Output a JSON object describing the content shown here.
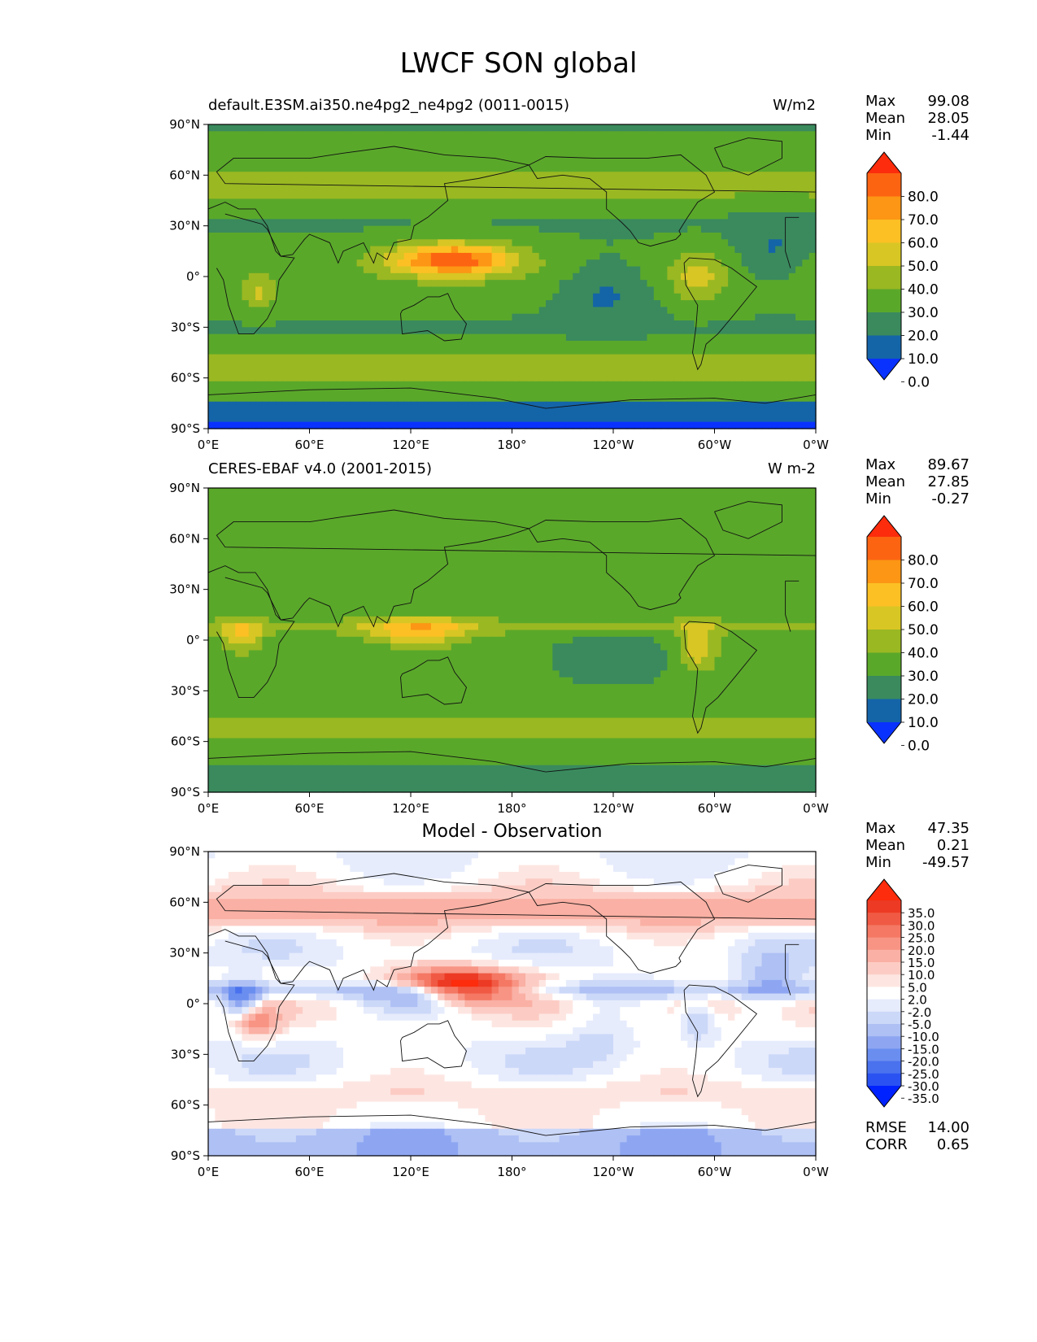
{
  "page_title": "LWCF SON global",
  "panels": [
    {
      "title_left": "default.E3SM.ai350.ne4pg2_ne4pg2 (0011-0015)",
      "title_right": "W/m2",
      "stats": [
        {
          "label": "Max",
          "value": "99.08"
        },
        {
          "label": "Mean",
          "value": "28.05"
        },
        {
          "label": "Min",
          "value": "-1.44"
        }
      ],
      "colorbar_levels": [
        "80.0",
        "70.0",
        "60.0",
        "50.0",
        "40.0",
        "30.0",
        "20.0",
        "10.0",
        "0.0"
      ]
    },
    {
      "title_left": "CERES-EBAF v4.0 (2001-2015)",
      "title_right": "W m-2",
      "stats": [
        {
          "label": "Max",
          "value": "89.67"
        },
        {
          "label": "Mean",
          "value": "27.85"
        },
        {
          "label": "Min",
          "value": "-0.27"
        }
      ],
      "colorbar_levels": [
        "80.0",
        "70.0",
        "60.0",
        "50.0",
        "40.0",
        "30.0",
        "20.0",
        "10.0",
        "0.0"
      ]
    },
    {
      "title_center": "Model - Observation",
      "stats": [
        {
          "label": "Max",
          "value": "47.35"
        },
        {
          "label": "Mean",
          "value": "0.21"
        },
        {
          "label": "Min",
          "value": "-49.57"
        }
      ],
      "colorbar_levels": [
        "35.0",
        "30.0",
        "25.0",
        "20.0",
        "15.0",
        "10.0",
        "5.0",
        "2.0",
        "-2.0",
        "-5.0",
        "-10.0",
        "-15.0",
        "-20.0",
        "-25.0",
        "-30.0",
        "-35.0"
      ],
      "metrics": [
        {
          "label": "RMSE",
          "value": "14.00"
        },
        {
          "label": "CORR",
          "value": "0.65"
        }
      ]
    }
  ],
  "axes": {
    "lat_ticks": [
      "90°N",
      "60°N",
      "30°N",
      "0°",
      "30°S",
      "60°S",
      "90°S"
    ],
    "lon_ticks": [
      "0°E",
      "60°E",
      "120°E",
      "180°",
      "120°W",
      "60°W",
      "0°W"
    ]
  },
  "colors": {
    "field_scale": [
      "#0a32ff",
      "#1464a8",
      "#3a8a5e",
      "#5aa82a",
      "#9ab822",
      "#d8c624",
      "#fcc024",
      "#fc9614",
      "#fc6412",
      "#fc2c0c"
    ],
    "diff_scale": [
      "#0022ff",
      "#2a52f2",
      "#4a72ee",
      "#6a8ef0",
      "#8ea6f2",
      "#aec0f4",
      "#ccd8f8",
      "#e6ecfc",
      "#ffffff",
      "#fde6e2",
      "#fcccc4",
      "#fab0a4",
      "#f89484",
      "#f47864",
      "#f05a44",
      "#ec3a24",
      "#fc2c0c"
    ]
  }
}
